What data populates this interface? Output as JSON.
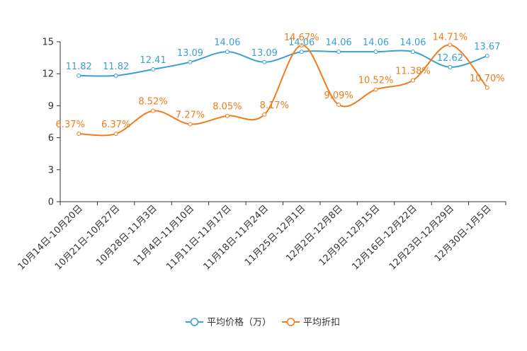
{
  "chart_data": {
    "type": "line",
    "categories": [
      "10月14日-10月20日",
      "10月21日-10月27日",
      "10月28日-11月3日",
      "11月4日-11月10日",
      "11月11日-11月17日",
      "11月18日-11月24日",
      "11月25日-12月1日",
      "12月2日-12月8日",
      "12月9日-12月15日",
      "12月16日-12月22日",
      "12月23日-12月29日",
      "12月30日-1月5日"
    ],
    "ylim": [
      0,
      15
    ],
    "yticks": [
      "0",
      "3",
      "6",
      "9",
      "12",
      "15"
    ],
    "ytick_values": [
      0,
      3,
      6,
      9,
      12,
      15
    ],
    "series": [
      {
        "name": "平均价格（万）",
        "color": "#3ba1d0",
        "values": [
          11.82,
          11.82,
          12.41,
          13.09,
          14.06,
          13.09,
          14.06,
          14.06,
          14.06,
          14.06,
          12.62,
          13.67
        ],
        "labels": [
          "11.82",
          "11.82",
          "12.41",
          "13.09",
          "14.06",
          "13.09",
          "14.06",
          "14.06",
          "14.06",
          "14.06",
          "12.62",
          "13.67"
        ]
      },
      {
        "name": "平均折扣",
        "color": "#f07c1c",
        "values": [
          6.37,
          6.37,
          8.52,
          7.27,
          8.05,
          8.17,
          14.67,
          9.09,
          10.52,
          11.38,
          14.71,
          10.7
        ],
        "labels": [
          "6.37%",
          "6.37%",
          "8.52%",
          "7.27%",
          "8.05%",
          "8.17%",
          "14.67%",
          "9.09%",
          "10.52%",
          "11.38%",
          "14.71%",
          "10.70%"
        ]
      }
    ],
    "legend_position": "bottom-center",
    "grid": false
  }
}
